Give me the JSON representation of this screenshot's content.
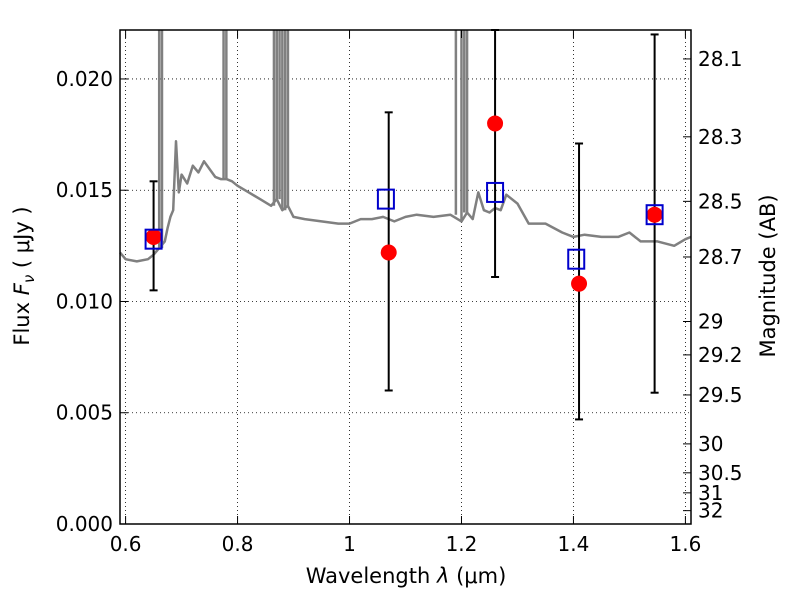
{
  "chart_data": {
    "type": "scatter",
    "xlabel_prefix": "Wavelength",
    "xlabel_symbol": "λ",
    "xlabel_unit": "(μm)",
    "ylabel_prefix": "Flux",
    "ylabel_symbol": "F",
    "ylabel_subscript": "ν",
    "ylabel_unit": "( μJy )",
    "y2label": "Magnitude (AB)",
    "xlim": [
      0.59,
      1.61
    ],
    "ylim": [
      0.0,
      0.0222
    ],
    "grid": true,
    "x_ticks": [
      0.6,
      0.8,
      1.0,
      1.2,
      1.4,
      1.6
    ],
    "x_tick_labels": [
      "0.6",
      "0.8",
      "1",
      "1.2",
      "1.4",
      "1.6"
    ],
    "y_ticks": [
      0.0,
      0.005,
      0.01,
      0.015,
      0.02
    ],
    "y_tick_labels": [
      "0.000",
      "0.005",
      "0.010",
      "0.015",
      "0.020"
    ],
    "y2_ticks": [
      {
        "label": "28.1",
        "flux": 0.0209
      },
      {
        "label": "28.3",
        "flux": 0.0174
      },
      {
        "label": "28.5",
        "flux": 0.0145
      },
      {
        "label": "28.7",
        "flux": 0.012
      },
      {
        "label": "29",
        "flux": 0.0091
      },
      {
        "label": "29.2",
        "flux": 0.0076
      },
      {
        "label": "29.5",
        "flux": 0.0058
      },
      {
        "label": "30",
        "flux": 0.0036
      },
      {
        "label": "30.5",
        "flux": 0.0023
      },
      {
        "label": "31",
        "flux": 0.0014
      },
      {
        "label": "32",
        "flux": 0.0006
      }
    ],
    "colors": {
      "model": "#808080",
      "observed": "#ff0000",
      "model_photometry": "#0000cc",
      "errorbar": "#000000"
    },
    "series": [
      {
        "kind": "line",
        "x": [
          0.59,
          0.6,
          0.62,
          0.64,
          0.65,
          0.66,
          0.67,
          0.675,
          0.68,
          0.685,
          0.69,
          0.695,
          0.7,
          0.71,
          0.72,
          0.73,
          0.74,
          0.76,
          0.77,
          0.78,
          0.79,
          0.8,
          0.82,
          0.84,
          0.86,
          0.87,
          0.88,
          0.89,
          0.9,
          0.92,
          0.95,
          0.98,
          1.0,
          1.02,
          1.04,
          1.06,
          1.08,
          1.1,
          1.12,
          1.15,
          1.18,
          1.2,
          1.21,
          1.22,
          1.23,
          1.24,
          1.25,
          1.26,
          1.27,
          1.28,
          1.3,
          1.32,
          1.35,
          1.38,
          1.4,
          1.42,
          1.45,
          1.48,
          1.5,
          1.52,
          1.55,
          1.58,
          1.6,
          1.61
        ],
        "y": [
          0.0122,
          0.0119,
          0.0118,
          0.0119,
          0.0121,
          0.0124,
          0.0127,
          0.0133,
          0.0138,
          0.0141,
          0.0172,
          0.0149,
          0.0157,
          0.0153,
          0.0161,
          0.0158,
          0.0163,
          0.0156,
          0.0155,
          0.0155,
          0.0154,
          0.0152,
          0.0149,
          0.0146,
          0.0143,
          0.0146,
          0.0141,
          0.0143,
          0.0138,
          0.0137,
          0.0136,
          0.0135,
          0.0135,
          0.0137,
          0.0137,
          0.0138,
          0.0136,
          0.0138,
          0.0139,
          0.0138,
          0.0139,
          0.0136,
          0.014,
          0.0137,
          0.0149,
          0.0141,
          0.014,
          0.0142,
          0.0141,
          0.0148,
          0.0144,
          0.0135,
          0.0135,
          0.0131,
          0.0129,
          0.013,
          0.0129,
          0.0129,
          0.0131,
          0.0127,
          0.0127,
          0.0125,
          0.0128,
          0.0129
        ]
      },
      {
        "kind": "observed",
        "x": [
          0.65,
          1.07,
          1.26,
          1.41,
          1.545
        ],
        "y": [
          0.0129,
          0.0122,
          0.018,
          0.0108,
          0.0139
        ],
        "yerr_low": [
          0.0105,
          0.006,
          0.0111,
          0.0047,
          0.0059
        ],
        "yerr_high": [
          0.0154,
          0.0185,
          0.0222,
          0.0171,
          0.022
        ]
      },
      {
        "kind": "model_photometry",
        "x": [
          0.65,
          1.065,
          1.26,
          1.405,
          1.545
        ],
        "y": [
          0.0128,
          0.0146,
          0.0149,
          0.0119,
          0.0139
        ]
      }
    ]
  }
}
